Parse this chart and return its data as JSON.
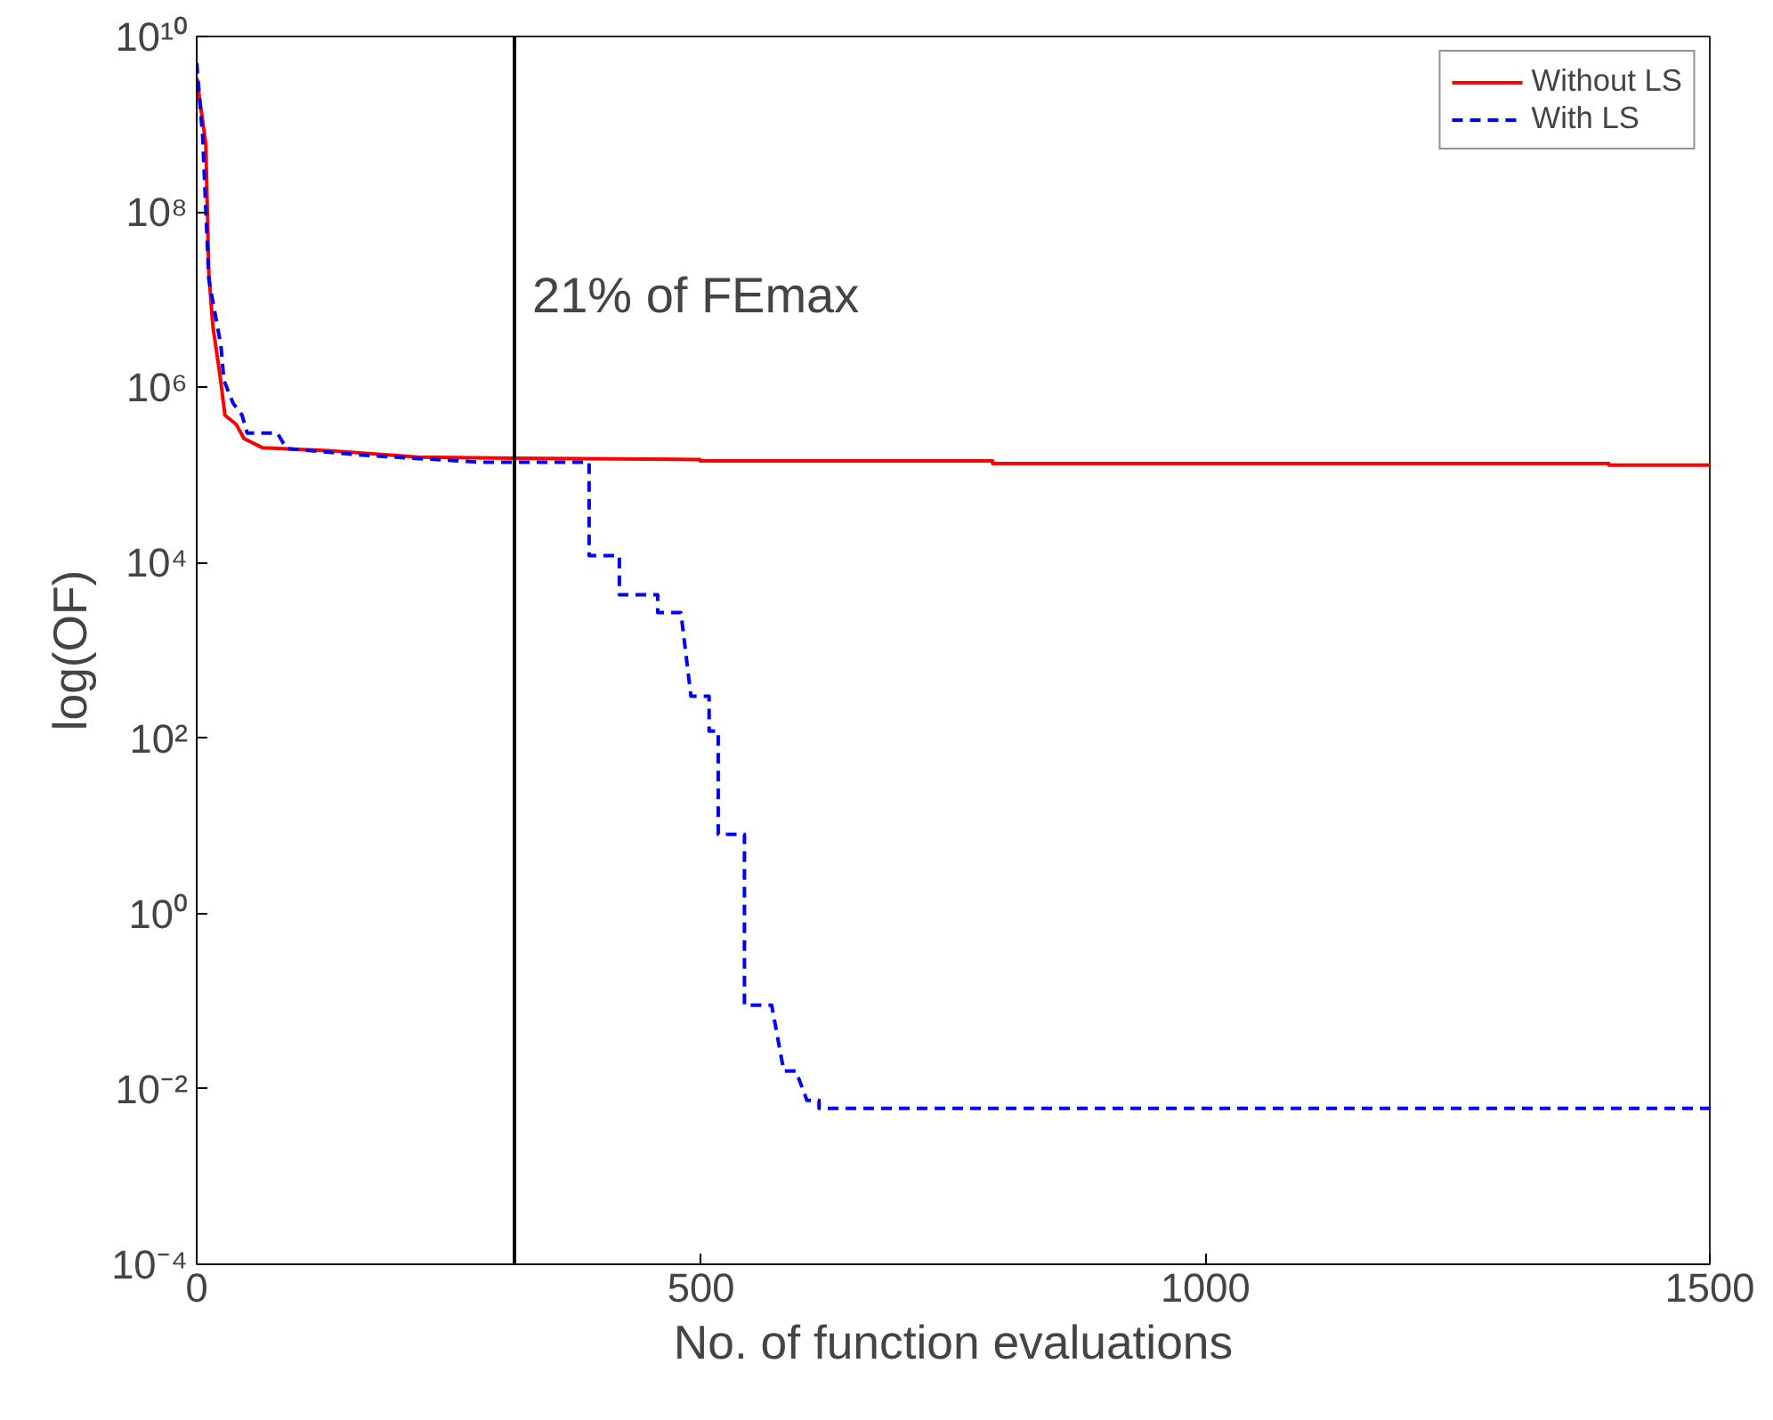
{
  "chart_data": {
    "type": "line",
    "xlabel": "No. of function evaluations",
    "ylabel": "log(OF)",
    "log": "y",
    "xlim": [
      0,
      1500
    ],
    "xticks": [
      0,
      500,
      1000,
      1500
    ],
    "ylim": [
      0.0001,
      10000000000
    ],
    "yticks": [
      {
        "value": 0.0001,
        "label": "10⁻⁴"
      },
      {
        "value": 0.01,
        "label": "10⁻²"
      },
      {
        "value": 1,
        "label": "10⁰"
      },
      {
        "value": 100,
        "label": "10²"
      },
      {
        "value": 10000,
        "label": "10⁴"
      },
      {
        "value": 1000000,
        "label": "10⁶"
      },
      {
        "value": 100000000,
        "label": "10⁸"
      },
      {
        "value": 10000000000,
        "label": "10¹⁰"
      }
    ],
    "grid": false,
    "legend": "top right",
    "marker": "none",
    "ref_lines": [
      {
        "axis": "x",
        "value": 315,
        "label": "21% of FEmax",
        "color": "#000000"
      }
    ],
    "series": [
      {
        "name": "Without LS",
        "color": "#ff0000",
        "line_style": "solid",
        "x": [
          0,
          9,
          12,
          16,
          23,
          28,
          39,
          47,
          65,
          130,
          219,
          315,
          499,
          499,
          789,
          789,
          1400,
          1400,
          1500
        ],
        "values": [
          3400000000,
          600000000,
          20000000,
          5000000,
          1400000,
          480000,
          380000,
          260000,
          205000,
          190000,
          160000,
          155000,
          150000,
          145000,
          145000,
          135000,
          135000,
          130000,
          130000
        ]
      },
      {
        "name": "With LS",
        "color": "#0000ff",
        "line_style": "dashed",
        "x": [
          0,
          6,
          12,
          24,
          27,
          36,
          45,
          50,
          80,
          89,
          160,
          279,
          380,
          389,
          389,
          419,
          419,
          457,
          457,
          480,
          490,
          508,
          508,
          517,
          517,
          543,
          543,
          570,
          582,
          594,
          605,
          617,
          617,
          645,
          1500
        ],
        "values": [
          5000000000,
          700000000,
          17000000,
          3000000,
          1200000,
          660000,
          480000,
          300000,
          300000,
          200000,
          170000,
          140000,
          140000,
          140000,
          12000,
          12000,
          4300,
          4300,
          2700,
          2700,
          300,
          300,
          120,
          120,
          8,
          8,
          0.09,
          0.09,
          0.016,
          0.016,
          0.0074,
          0.0074,
          0.006,
          0.006,
          0.006
        ]
      }
    ]
  }
}
